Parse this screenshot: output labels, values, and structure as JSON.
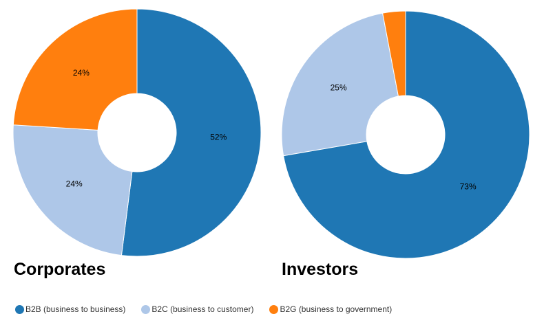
{
  "chart_data": [
    {
      "type": "pie",
      "title": "Corporates",
      "categories": [
        "B2B (business to business)",
        "B2C (business to customer)",
        "B2G (business to government)"
      ],
      "values": [
        52,
        24,
        24
      ],
      "data_labels": [
        "52%",
        "24%",
        "24%"
      ],
      "colors": [
        "#1f77b4",
        "#aec7e8",
        "#ff7f0e"
      ]
    },
    {
      "type": "pie",
      "title": "Investors",
      "categories": [
        "B2B (business to business)",
        "B2C (business to customer)",
        "B2G (business to government)"
      ],
      "values": [
        73,
        25,
        3
      ],
      "data_labels": [
        "73%",
        "25%",
        ""
      ],
      "colors": [
        "#1f77b4",
        "#aec7e8",
        "#ff7f0e"
      ]
    }
  ],
  "legend": {
    "items": [
      {
        "label": "B2B (business to business)",
        "color": "#1f77b4"
      },
      {
        "label": "B2C (business to customer)",
        "color": "#aec7e8"
      },
      {
        "label": "B2G (business to government)",
        "color": "#ff7f0e"
      }
    ]
  }
}
